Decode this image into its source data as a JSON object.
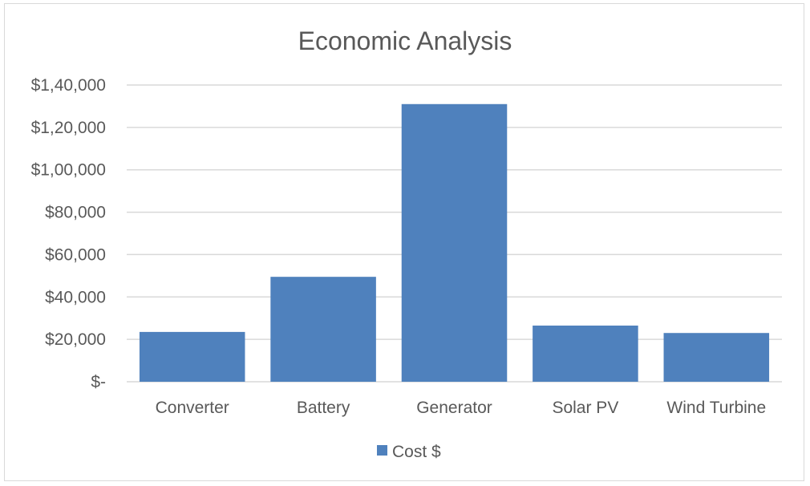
{
  "chart_data": {
    "type": "bar",
    "title": "Economic Analysis",
    "xlabel": "",
    "ylabel": "",
    "categories": [
      "Converter",
      "Battery",
      "Generator",
      "Solar PV",
      "Wind Turbine"
    ],
    "series": [
      {
        "name": "Cost $",
        "values": [
          23500,
          49500,
          131000,
          26500,
          23000
        ],
        "color": "#4f81bd"
      }
    ],
    "ylim": [
      0,
      140000
    ],
    "yticks": [
      0,
      20000,
      40000,
      60000,
      80000,
      100000,
      120000,
      140000
    ],
    "ytick_labels": [
      "$-",
      "$20,000",
      "$40,000",
      "$60,000",
      "$80,000",
      "$1,00,000",
      "$1,20,000",
      "$1,40,000"
    ],
    "grid": true,
    "legend_position": "bottom"
  }
}
